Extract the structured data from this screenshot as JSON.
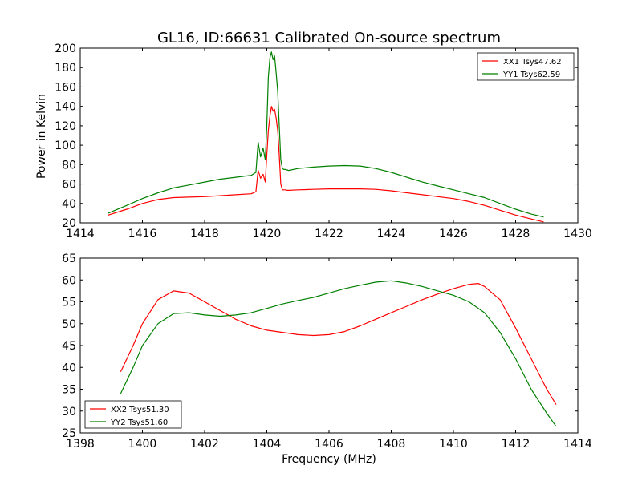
{
  "figure": {
    "title": "GL16, ID:66631 Calibrated On-source spectrum"
  },
  "chart_data": [
    {
      "type": "line",
      "title": "GL16, ID:66631 Calibrated On-source spectrum",
      "xlabel": "",
      "ylabel": "Power in Kelvin",
      "xlim": [
        1414,
        1430
      ],
      "ylim": [
        20,
        200
      ],
      "xticks": [
        1414,
        1416,
        1418,
        1420,
        1422,
        1424,
        1426,
        1428,
        1430
      ],
      "yticks": [
        20,
        40,
        60,
        80,
        100,
        120,
        140,
        160,
        180,
        200
      ],
      "legend_position": "top-right",
      "series": [
        {
          "name": "XX1 Tsys47.62",
          "color": "#ff0000",
          "x": [
            1414.9,
            1415.5,
            1416.0,
            1416.5,
            1417.0,
            1417.5,
            1418.0,
            1418.5,
            1419.0,
            1419.5,
            1419.65,
            1419.72,
            1419.8,
            1419.88,
            1419.95,
            1420.0,
            1420.05,
            1420.1,
            1420.15,
            1420.2,
            1420.25,
            1420.3,
            1420.35,
            1420.4,
            1420.45,
            1420.5,
            1420.55,
            1420.6,
            1420.65,
            1420.7,
            1421.0,
            1421.5,
            1422.0,
            1422.5,
            1423.0,
            1423.5,
            1424.0,
            1424.5,
            1425.0,
            1425.5,
            1426.0,
            1426.5,
            1427.0,
            1427.5,
            1428.0,
            1428.5,
            1428.9
          ],
          "y": [
            28,
            34,
            40,
            44,
            46,
            46.5,
            47,
            48,
            49,
            50,
            52,
            74,
            66,
            70,
            62,
            90,
            115,
            130,
            140,
            135,
            137,
            128,
            115,
            90,
            60,
            54,
            54,
            54,
            53.5,
            53.5,
            54,
            54.5,
            55,
            55,
            55,
            54.5,
            53,
            51,
            49,
            47,
            45,
            42,
            38,
            33,
            28,
            24,
            21
          ]
        },
        {
          "name": "YY1 Tsys62.59",
          "color": "#008000",
          "x": [
            1414.9,
            1415.5,
            1416.0,
            1416.5,
            1417.0,
            1417.5,
            1418.0,
            1418.5,
            1419.0,
            1419.5,
            1419.65,
            1419.72,
            1419.8,
            1419.88,
            1419.95,
            1420.0,
            1420.05,
            1420.1,
            1420.15,
            1420.2,
            1420.25,
            1420.3,
            1420.35,
            1420.4,
            1420.45,
            1420.5,
            1420.55,
            1420.6,
            1420.65,
            1420.7,
            1421.0,
            1421.5,
            1422.0,
            1422.5,
            1423.0,
            1423.5,
            1424.0,
            1424.5,
            1425.0,
            1425.5,
            1426.0,
            1426.5,
            1427.0,
            1427.5,
            1428.0,
            1428.5,
            1428.9
          ],
          "y": [
            30,
            38,
            45,
            51,
            56,
            59,
            62,
            65,
            67,
            69,
            72,
            103,
            88,
            97,
            85,
            120,
            170,
            190,
            196,
            188,
            192,
            175,
            155,
            120,
            85,
            76,
            75,
            75,
            74.5,
            74,
            76,
            77.5,
            78.5,
            79,
            78.5,
            76,
            72,
            67,
            62,
            58,
            54,
            50,
            46,
            40,
            34,
            29,
            26
          ]
        }
      ]
    },
    {
      "type": "line",
      "title": "",
      "xlabel": "Frequency (MHz)",
      "ylabel": "",
      "xlim": [
        1398,
        1414
      ],
      "ylim": [
        25,
        65
      ],
      "xticks": [
        1398,
        1400,
        1402,
        1404,
        1406,
        1408,
        1410,
        1412,
        1414
      ],
      "yticks": [
        25,
        30,
        35,
        40,
        45,
        50,
        55,
        60,
        65
      ],
      "legend_position": "bottom-left",
      "series": [
        {
          "name": "XX2 Tsys51.30",
          "color": "#ff0000",
          "x": [
            1399.3,
            1399.7,
            1400.0,
            1400.5,
            1401.0,
            1401.5,
            1402.0,
            1402.5,
            1403.0,
            1403.5,
            1404.0,
            1404.5,
            1405.0,
            1405.5,
            1406.0,
            1406.5,
            1407.0,
            1407.5,
            1408.0,
            1408.5,
            1409.0,
            1409.5,
            1410.0,
            1410.5,
            1410.8,
            1411.0,
            1411.5,
            1412.0,
            1412.5,
            1413.0,
            1413.3
          ],
          "y": [
            39,
            45,
            50,
            55.5,
            57.5,
            57,
            55,
            53,
            51,
            49.5,
            48.5,
            48,
            47.5,
            47.3,
            47.5,
            48.2,
            49.5,
            51,
            52.5,
            54,
            55.5,
            56.8,
            58,
            59,
            59.2,
            58.5,
            55.5,
            49,
            42,
            35,
            31.5
          ]
        },
        {
          "name": "YY2 Tsys51.60",
          "color": "#008000",
          "x": [
            1399.3,
            1399.7,
            1400.0,
            1400.5,
            1401.0,
            1401.5,
            1402.0,
            1402.5,
            1403.0,
            1403.5,
            1404.0,
            1404.5,
            1405.0,
            1405.5,
            1406.0,
            1406.5,
            1407.0,
            1407.5,
            1408.0,
            1408.5,
            1409.0,
            1409.5,
            1410.0,
            1410.5,
            1411.0,
            1411.5,
            1412.0,
            1412.5,
            1413.0,
            1413.3
          ],
          "y": [
            34,
            40,
            45,
            50,
            52.3,
            52.5,
            52,
            51.7,
            52,
            52.5,
            53.5,
            54.5,
            55.3,
            56,
            57,
            58,
            58.8,
            59.5,
            59.8,
            59.3,
            58.5,
            57.5,
            56.5,
            55,
            52.5,
            48,
            42,
            35,
            29.5,
            26.5
          ]
        }
      ]
    }
  ]
}
